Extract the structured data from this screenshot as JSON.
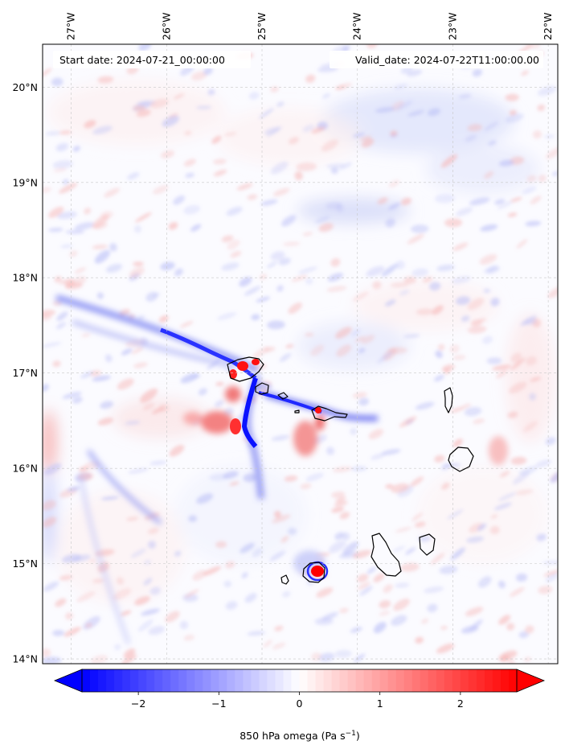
{
  "map": {
    "type": "contour-map",
    "projection": "PlateCarree",
    "region": "Cape Verde Islands",
    "lon_range": [
      -27.3,
      -21.9
    ],
    "lat_range": [
      13.95,
      20.45
    ],
    "lon_ticks": [
      -27,
      -26,
      -25,
      -24,
      -23,
      -22
    ],
    "lat_ticks": [
      14,
      15,
      16,
      17,
      18,
      19,
      20
    ],
    "lon_tick_labels": [
      "27°W",
      "26°W",
      "25°W",
      "24°W",
      "23°W",
      "22°W"
    ],
    "lat_tick_labels": [
      "14°N",
      "15°N",
      "16°N",
      "17°N",
      "18°N",
      "19°N",
      "20°N"
    ],
    "gridlines": true,
    "coastlines": true,
    "background_color": "#fbfbff"
  },
  "annotations": {
    "start_date": "Start date: 2024-07-21_00:00:00",
    "valid_date": "Valid_date: 2024-07-22T11:00:00.00"
  },
  "colorbar": {
    "label": "850 hPa omega (Pa s",
    "label_superscript": "−1",
    "label_suffix": ")",
    "vmin": -2.7,
    "vmax": 2.7,
    "ticks": [
      -2,
      -1,
      0,
      1,
      2
    ],
    "tick_labels": [
      "−2",
      "−1",
      "0",
      "1",
      "2"
    ],
    "colormap": "bwr",
    "extend": "both",
    "color_min": "#0000ff",
    "color_mid": "#ffffff",
    "color_max": "#ff0000"
  },
  "chart_data": {
    "type": "heatmap",
    "variable": "850 hPa omega",
    "units": "Pa s^-1",
    "features": [
      {
        "kind": "strong-descent",
        "lon": -25.4,
        "lat": 17.0,
        "value": 2.5
      },
      {
        "kind": "strong-ascent",
        "lon": -25.15,
        "lat": 16.5,
        "value": -2.5
      },
      {
        "kind": "ascent-band",
        "lon": -26.2,
        "lat": 17.2,
        "value": -1.5
      },
      {
        "kind": "ascent-band",
        "lon": -24.5,
        "lat": 16.7,
        "value": -1.6
      },
      {
        "kind": "descent",
        "lon": -25.55,
        "lat": 16.45,
        "value": 1.2
      },
      {
        "kind": "descent",
        "lon": -25.75,
        "lat": 16.5,
        "value": 1.0
      },
      {
        "kind": "descent",
        "lon": -24.3,
        "lat": 16.6,
        "value": 1.4
      },
      {
        "kind": "descent",
        "lon": -24.45,
        "lat": 16.35,
        "value": 0.9
      },
      {
        "kind": "strong-descent",
        "lon": -24.3,
        "lat": 14.93,
        "value": 2.5
      },
      {
        "kind": "ascent",
        "lon": -24.3,
        "lat": 15.03,
        "value": -1.2
      },
      {
        "kind": "ascent-band",
        "lon": -23.4,
        "lat": 19.3,
        "value": -0.4
      },
      {
        "kind": "ascent-band",
        "lon": -22.8,
        "lat": 19.8,
        "value": -0.4
      },
      {
        "kind": "ascent",
        "lon": -26.0,
        "lat": 15.7,
        "value": -0.9
      },
      {
        "kind": "descent",
        "lon": -27.25,
        "lat": 16.2,
        "value": 0.8
      }
    ],
    "islands": [
      {
        "name": "Santo Antão",
        "lon": -25.2,
        "lat": 17.05
      },
      {
        "name": "São Vicente",
        "lon": -24.95,
        "lat": 16.85
      },
      {
        "name": "Santa Luzia",
        "lon": -24.75,
        "lat": 16.75
      },
      {
        "name": "São Nicolau",
        "lon": -24.15,
        "lat": 16.62
      },
      {
        "name": "Sal",
        "lon": -22.93,
        "lat": 16.72
      },
      {
        "name": "Boa Vista",
        "lon": -22.85,
        "lat": 16.1
      },
      {
        "name": "Maio",
        "lon": -23.15,
        "lat": 15.22
      },
      {
        "name": "Santiago",
        "lon": -23.6,
        "lat": 15.05
      },
      {
        "name": "Fogo",
        "lon": -24.35,
        "lat": 14.92
      },
      {
        "name": "Brava",
        "lon": -24.7,
        "lat": 14.85
      }
    ]
  }
}
